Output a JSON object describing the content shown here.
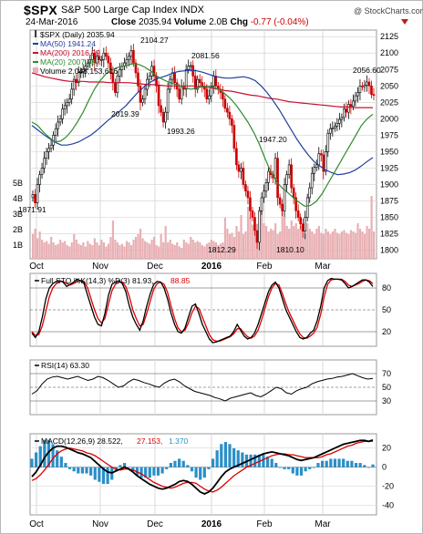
{
  "header": {
    "ticker": "$SPX",
    "company": "S&P 500 Large Cap Index",
    "exchange": "INDX",
    "date": "24-Mar-2016",
    "close_label": "Close",
    "close_value": "2035.94",
    "volume_label": "Volume",
    "volume_value": "2.0B",
    "chg_label": "Chg",
    "chg_value": "-0.77 (-0.04%)",
    "watermark": "@ StockCharts.com"
  },
  "legend": {
    "price": "$SPX (Daily) 2035.94",
    "ma50": "MA(50) 1941.24",
    "ma200": "MA(200) 2016.99",
    "ma20": "MA(20) 2007.38",
    "volume": "Volume 2,048,153,616"
  },
  "colors": {
    "ma50": "#1f3f9e",
    "ma200": "#c8102e",
    "ma20": "#2e8b2e",
    "volume": "#e8b0b4",
    "candle_up": "#000000",
    "candle_down": "#cc0000",
    "sto_k": "#000000",
    "sto_d": "#dd0000",
    "macd": "#000000",
    "signal": "#dd0000",
    "hist": "#2a8fc8",
    "panel_bg": "#ffffff",
    "grid": "#d8d8d8"
  },
  "x_labels": [
    {
      "label": "Oct",
      "bold": false
    },
    {
      "label": "Nov",
      "bold": false
    },
    {
      "label": "Dec",
      "bold": false
    },
    {
      "label": "2016",
      "bold": true
    },
    {
      "label": "Feb",
      "bold": false
    },
    {
      "label": "Mar",
      "bold": false
    }
  ],
  "chart_data": [
    {
      "type": "candlestick",
      "title": "$SPX (Daily) 2035.94",
      "y_ticks": [
        1800,
        1825,
        1850,
        1875,
        1900,
        1925,
        1950,
        1975,
        2000,
        2025,
        2050,
        2075,
        2100,
        2125
      ],
      "volume_ticks": [
        "1B",
        "2B",
        "3B",
        "4B",
        "5B"
      ],
      "annotations": [
        {
          "label": "1871.91",
          "value": 1871.91
        },
        {
          "label": "2104.27",
          "value": 2104.27
        },
        {
          "label": "2019.39",
          "value": 2019.39
        },
        {
          "label": "2081.56",
          "value": 2081.56
        },
        {
          "label": "1993.26",
          "value": 1993.26
        },
        {
          "label": "1947.20",
          "value": 1947.2
        },
        {
          "label": "1812.29",
          "value": 1812.29
        },
        {
          "label": "1810.10",
          "value": 1810.1
        },
        {
          "label": "2056.60",
          "value": 2056.6
        }
      ],
      "ohlc_close": [
        1885,
        1872,
        1900,
        1915,
        1925,
        1940,
        1950,
        1955,
        1960,
        1975,
        1985,
        1995,
        2000,
        2015,
        2020,
        2025,
        2030,
        2045,
        2060,
        2055,
        2070,
        2072,
        2075,
        2080,
        2085,
        2090,
        2100,
        2085,
        2095,
        2090,
        2090,
        2100,
        2095,
        2085,
        2070,
        2055,
        2040,
        2065,
        2075,
        2080,
        2085,
        2090,
        2095,
        2104,
        2085,
        2070,
        2050,
        2025,
        2030,
        2045,
        2060,
        2065,
        2080,
        2065,
        2050,
        2020,
        2010,
        1995,
        2010,
        2045,
        2060,
        2070,
        2055,
        2045,
        2030,
        2050,
        2045,
        2075,
        2080,
        2081,
        2065,
        2045,
        2060,
        2055,
        2050,
        2045,
        2030,
        2035,
        2050,
        2065,
        2050,
        2045,
        2040,
        2030,
        2016,
        2010,
        2000,
        1990,
        1955,
        1930,
        1920,
        1925,
        1900,
        1890,
        1880,
        1860,
        1850,
        1830,
        1812,
        1860,
        1880,
        1890,
        1903,
        1920,
        1915,
        1910,
        1940,
        1880,
        1870,
        1860,
        1900,
        1915,
        1930,
        1895,
        1880,
        1860,
        1850,
        1840,
        1829,
        1850,
        1880,
        1895,
        1917,
        1926,
        1930,
        1947,
        1945,
        1920,
        1950,
        1978,
        1985,
        1986,
        1989,
        1993,
        1999,
        2002,
        2015,
        2010,
        2022,
        2019,
        2027,
        2035,
        2040,
        2050,
        2049,
        2051,
        2056,
        2050,
        2037,
        2036
      ],
      "ma50": [
        1990,
        1983,
        1976,
        1970,
        1964,
        1960,
        1960,
        1962,
        1965,
        1970,
        1975,
        1982,
        1990,
        1998,
        2005,
        2012,
        2020,
        2030,
        2040,
        2048,
        2055,
        2060,
        2063,
        2066,
        2070,
        2072,
        2073,
        2074,
        2073,
        2071,
        2068,
        2065,
        2063,
        2062,
        2062,
        2063,
        2064,
        2062,
        2058,
        2050,
        2040,
        2028,
        2015,
        2000,
        1985,
        1970,
        1957,
        1945,
        1935,
        1928,
        1922,
        1918,
        1915,
        1916,
        1918,
        1922,
        1928,
        1935,
        1941
      ],
      "ma200": [
        2070,
        2067,
        2064,
        2062,
        2060,
        2058,
        2057,
        2057,
        2057,
        2056,
        2056,
        2056,
        2055,
        2055,
        2055,
        2055,
        2054,
        2053,
        2052,
        2052,
        2051,
        2050,
        2050,
        2050,
        2050,
        2050,
        2049,
        2048,
        2047,
        2045,
        2043,
        2042,
        2040,
        2038,
        2036,
        2035,
        2033,
        2031,
        2030,
        2028,
        2026,
        2025,
        2024,
        2023,
        2022,
        2021,
        2020,
        2019,
        2018,
        2018,
        2017,
        2017,
        2017,
        2017
      ],
      "ma20": [
        1995,
        1990,
        1980,
        1972,
        1965,
        1966,
        1972,
        1982,
        1995,
        2010,
        2028,
        2045,
        2058,
        2068,
        2074,
        2078,
        2080,
        2082,
        2084,
        2082,
        2078,
        2072,
        2065,
        2060,
        2056,
        2053,
        2050,
        2047,
        2045,
        2047,
        2049,
        2050,
        2048,
        2044,
        2038,
        2030,
        2020,
        2008,
        1995,
        1980,
        1962,
        1940,
        1920,
        1905,
        1895,
        1888,
        1880,
        1873,
        1867,
        1868,
        1874,
        1885,
        1900,
        1915,
        1930,
        1945,
        1960,
        1975,
        1990,
        2000,
        2007
      ],
      "volume_series_name": "Volume"
    },
    {
      "type": "line",
      "title": "Full STO %K(14,3) %D(3) 81.93, 88.85",
      "y_ticks": [
        20,
        50,
        80
      ],
      "series": [
        {
          "name": "%K(14,3)",
          "values": [
            18,
            12,
            20,
            40,
            65,
            80,
            86,
            89,
            90,
            88,
            82,
            85,
            88,
            92,
            90,
            86,
            70,
            55,
            40,
            30,
            28,
            45,
            70,
            85,
            88,
            90,
            86,
            75,
            55,
            40,
            30,
            22,
            35,
            55,
            72,
            85,
            89,
            88,
            80,
            65,
            45,
            30,
            20,
            18,
            25,
            40,
            55,
            58,
            45,
            30,
            20,
            10,
            5,
            6,
            8,
            10,
            12,
            14,
            20,
            30,
            22,
            14,
            10,
            12,
            18,
            30,
            45,
            60,
            75,
            84,
            88,
            80,
            65,
            50,
            40,
            30,
            20,
            12,
            10,
            12,
            18,
            22,
            35,
            55,
            80,
            90,
            93,
            92,
            92,
            91,
            86,
            80,
            82,
            85,
            88,
            91,
            91,
            88,
            82
          ]
        },
        {
          "name": "%D(3)",
          "values": [
            20,
            15,
            16,
            28,
            48,
            68,
            80,
            86,
            89,
            89,
            86,
            84,
            86,
            89,
            90,
            89,
            80,
            65,
            50,
            38,
            32,
            38,
            58,
            76,
            85,
            88,
            88,
            82,
            68,
            50,
            38,
            28,
            30,
            45,
            62,
            78,
            86,
            88,
            85,
            74,
            55,
            38,
            25,
            20,
            22,
            32,
            46,
            55,
            52,
            40,
            28,
            16,
            9,
            7,
            7,
            9,
            11,
            13,
            17,
            24,
            24,
            18,
            13,
            11,
            14,
            22,
            36,
            52,
            68,
            80,
            86,
            84,
            72,
            58,
            46,
            36,
            26,
            17,
            12,
            11,
            14,
            18,
            26,
            44,
            68,
            85,
            91,
            92,
            92,
            92,
            89,
            84,
            82,
            84,
            86,
            89,
            91,
            90,
            86
          ]
        }
      ]
    },
    {
      "type": "line",
      "title": "RSI(14) 63.30",
      "y_ticks": [
        30,
        50,
        70
      ],
      "series": [
        {
          "name": "RSI(14)",
          "values": [
            40,
            45,
            55,
            62,
            65,
            66,
            64,
            62,
            64,
            66,
            63,
            60,
            62,
            66,
            64,
            60,
            55,
            50,
            52,
            58,
            62,
            60,
            57,
            55,
            52,
            50,
            56,
            60,
            62,
            58,
            52,
            48,
            44,
            42,
            40,
            38,
            35,
            33,
            30,
            34,
            36,
            38,
            40,
            42,
            38,
            36,
            40,
            45,
            50,
            48,
            42,
            40,
            45,
            48,
            50,
            55,
            58,
            60,
            62,
            63,
            65,
            66,
            68,
            70,
            67,
            64,
            62,
            63
          ]
        }
      ]
    },
    {
      "type": "line",
      "title": "MACD(12,26,9) 28.522, 27.153, 1.370",
      "y_ticks": [
        -40,
        -20,
        0,
        20
      ],
      "series": [
        {
          "name": "MACD(12,26,9)",
          "values": [
            -10,
            -5,
            2,
            10,
            16,
            20,
            22,
            22,
            21,
            19,
            17,
            15,
            14,
            12,
            10,
            6,
            2,
            -2,
            -5,
            -6,
            -4,
            -2,
            0,
            -2,
            -5,
            -9,
            -12,
            -15,
            -18,
            -20,
            -22,
            -23,
            -22,
            -20,
            -18,
            -15,
            -14,
            -15,
            -18,
            -22,
            -26,
            -28,
            -26,
            -22,
            -16,
            -10,
            -5,
            -2,
            0,
            2,
            4,
            6,
            8,
            10,
            12,
            14,
            15,
            16,
            15,
            14,
            13,
            12,
            10,
            8,
            7,
            8,
            9,
            10,
            12,
            14,
            16,
            18,
            20,
            22,
            24,
            25,
            26,
            27,
            28,
            28,
            27,
            28.5
          ]
        },
        {
          "name": "Signal",
          "values": [
            -14,
            -12,
            -8,
            -3,
            3,
            9,
            14,
            17,
            19,
            20,
            19,
            18,
            17,
            15,
            14,
            12,
            9,
            6,
            3,
            0,
            -2,
            -3,
            -2,
            -2,
            -3,
            -5,
            -7,
            -10,
            -13,
            -16,
            -18,
            -20,
            -21,
            -22,
            -21,
            -19,
            -17,
            -16,
            -16,
            -17,
            -20,
            -23,
            -25,
            -26,
            -24,
            -21,
            -17,
            -13,
            -9,
            -6,
            -3,
            0,
            2,
            4,
            6,
            8,
            10,
            12,
            13,
            14,
            14,
            13,
            13,
            12,
            11,
            10,
            10,
            10,
            10,
            11,
            13,
            14,
            16,
            18,
            20,
            22,
            23,
            25,
            26,
            27,
            27,
            27.2
          ]
        }
      ],
      "histogram_name": "Histogram"
    }
  ]
}
